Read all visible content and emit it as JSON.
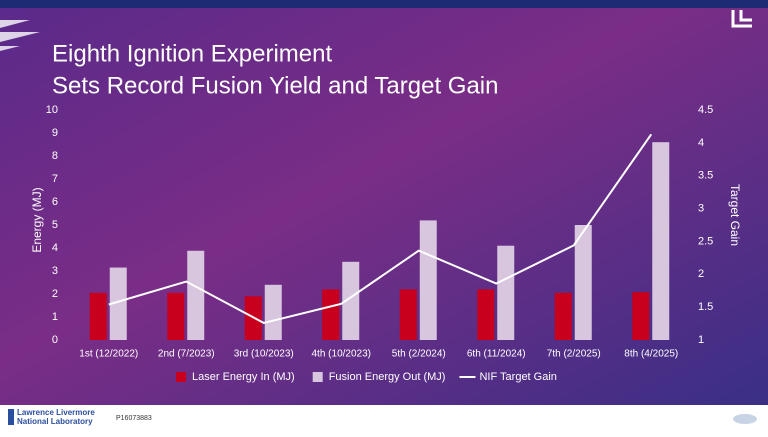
{
  "chart_data": {
    "type": "bar",
    "title": [
      "Eighth Ignition Experiment",
      "Sets Record Fusion Yield and Target Gain"
    ],
    "ylabel": "Energy (MJ)",
    "y2label": "Target Gain",
    "categories": [
      "1st (12/2022)",
      "2nd (7/2023)",
      "3rd (10/2023)",
      "4th (10/2023)",
      "5th (2/2024)",
      "6th (11/2024)",
      "7th (2/2025)",
      "8th (4/2025)"
    ],
    "series": [
      {
        "name": "Laser Energy In (MJ)",
        "type": "bar",
        "color": "#c8001e",
        "values": [
          2.05,
          2.05,
          1.9,
          2.2,
          2.2,
          2.2,
          2.05,
          2.08
        ]
      },
      {
        "name": "Fusion Energy Out (MJ)",
        "type": "bar",
        "color": "#d8c6df",
        "values": [
          3.15,
          3.88,
          2.4,
          3.4,
          5.2,
          4.1,
          5.0,
          8.6
        ]
      },
      {
        "name": "NIF Target Gain",
        "type": "line",
        "axis": "y2",
        "color": "#ffffff",
        "values": [
          1.54,
          1.89,
          1.26,
          1.55,
          2.36,
          1.86,
          2.44,
          4.13
        ]
      }
    ],
    "ylim": [
      0,
      10
    ],
    "yticks": [
      0,
      1,
      2,
      3,
      4,
      5,
      6,
      7,
      8,
      9,
      10
    ],
    "y2lim": [
      1,
      4.5
    ],
    "y2ticks": [
      1,
      1.5,
      2,
      2.5,
      3,
      3.5,
      4,
      4.5
    ],
    "grid": false
  },
  "footer": {
    "org_lines": [
      "Lawrence Livermore",
      "National Laboratory"
    ],
    "id": "P16073883"
  }
}
